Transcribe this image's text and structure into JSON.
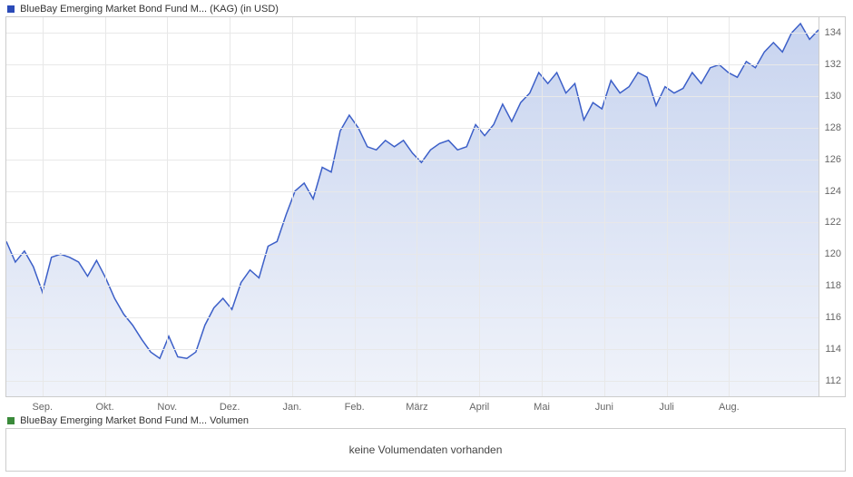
{
  "price_chart": {
    "type": "area",
    "title": "BlueBay Emerging Market Bond Fund M... (KAG) (in USD)",
    "legend_color": "#2b4bb8",
    "line_color": "#3c5fc8",
    "line_width": 1.5,
    "fill_top": "#c8d4ef",
    "fill_bottom": "#f0f3fa",
    "background_color": "#ffffff",
    "grid_color": "#e8e8e8",
    "border_color": "#cccccc",
    "label_fontsize": 11,
    "label_color": "#666666",
    "ylim": [
      111,
      135
    ],
    "ytick_step": 2,
    "yticks": [
      112,
      114,
      116,
      118,
      120,
      122,
      124,
      126,
      128,
      130,
      132,
      134
    ],
    "x_categories": [
      "Sep.",
      "Okt.",
      "Nov.",
      "Dez.",
      "Jan.",
      "Feb.",
      "März",
      "April",
      "Mai",
      "Juni",
      "Juli",
      "Aug."
    ],
    "data": [
      120.8,
      119.5,
      120.2,
      119.2,
      117.6,
      119.8,
      120.0,
      119.8,
      119.5,
      118.6,
      119.6,
      118.5,
      117.2,
      116.2,
      115.5,
      114.6,
      113.8,
      113.4,
      114.8,
      113.5,
      113.4,
      113.8,
      115.5,
      116.6,
      117.2,
      116.5,
      118.2,
      119.0,
      118.5,
      120.5,
      120.8,
      122.5,
      124.0,
      124.5,
      123.5,
      125.5,
      125.2,
      127.8,
      128.8,
      128.0,
      126.8,
      126.6,
      127.2,
      126.8,
      127.2,
      126.4,
      125.8,
      126.6,
      127.0,
      127.2,
      126.6,
      126.8,
      128.2,
      127.5,
      128.2,
      129.5,
      128.4,
      129.6,
      130.2,
      131.5,
      130.8,
      131.5,
      130.2,
      130.8,
      128.5,
      129.6,
      129.2,
      131.0,
      130.2,
      130.6,
      131.5,
      131.2,
      129.4,
      130.6,
      130.2,
      130.5,
      131.5,
      130.8,
      131.8,
      132.0,
      131.5,
      131.2,
      132.2,
      131.8,
      132.8,
      133.4,
      132.8,
      134.0,
      134.6,
      133.6,
      134.2
    ]
  },
  "volume_chart": {
    "title": "BlueBay Emerging Market Bond Fund M... Volumen",
    "legend_color": "#3a8a3a",
    "message": "keine Volumendaten vorhanden",
    "message_color": "#444444",
    "message_fontsize": 12,
    "border_color": "#cccccc"
  }
}
